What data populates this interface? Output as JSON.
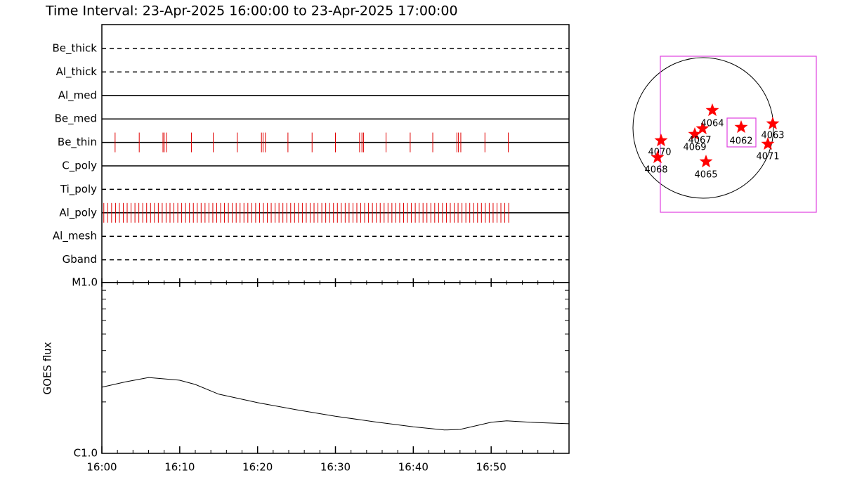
{
  "chart_data": [
    {
      "type": "timeline",
      "title": "Time Interval: 23-Apr-2025 16:00:00 to 23-Apr-2025 17:00:00",
      "categories": [
        "Be_thick",
        "Al_thick",
        "Al_med",
        "Be_med",
        "Be_thin",
        "C_poly",
        "Ti_poly",
        "Al_poly",
        "Al_mesh",
        "Gband"
      ],
      "styles": [
        "dashed",
        "dashed",
        "solid",
        "solid",
        "solid",
        "solid",
        "dashed",
        "solid",
        "dashed",
        "dashed"
      ],
      "color": "#e00000",
      "xlim": [
        0,
        60
      ],
      "events": [
        [],
        [],
        [],
        [],
        [
          1.7,
          4.8,
          7.85,
          8.0,
          8.3,
          11.5,
          14.3,
          17.4,
          20.5,
          20.7,
          21.0,
          23.9,
          27.0,
          30.0,
          33.1,
          33.4,
          33.6,
          36.5,
          39.6,
          42.5,
          45.6,
          45.8,
          46.1,
          49.2,
          52.2
        ],
        [],
        [],
        [
          0.25,
          0.75,
          1.25,
          1.75,
          2.25,
          2.75,
          3.25,
          3.75,
          4.25,
          4.75,
          5.25,
          5.75,
          6.25,
          6.75,
          7.25,
          7.75,
          8.25,
          8.75,
          9.25,
          9.75,
          10.25,
          10.75,
          11.25,
          11.75,
          12.25,
          12.75,
          13.25,
          13.75,
          14.25,
          14.75,
          15.25,
          15.75,
          16.25,
          16.75,
          17.25,
          17.75,
          18.25,
          18.75,
          19.25,
          19.75,
          20.25,
          20.75,
          21.25,
          21.75,
          22.25,
          22.75,
          23.25,
          23.75,
          24.25,
          24.75,
          25.25,
          25.75,
          26.25,
          26.75,
          27.25,
          27.75,
          28.25,
          28.75,
          29.25,
          29.75,
          30.25,
          30.75,
          31.25,
          31.75,
          32.25,
          32.75,
          33.25,
          33.75,
          34.25,
          34.75,
          35.25,
          35.75,
          36.25,
          36.75,
          37.25,
          37.75,
          38.25,
          38.75,
          39.25,
          39.75,
          40.25,
          40.75,
          41.25,
          41.75,
          42.25,
          42.75,
          43.25,
          43.75,
          44.25,
          44.75,
          45.25,
          45.75,
          46.25,
          46.75,
          47.25,
          47.75,
          48.25,
          48.75,
          49.25,
          49.75,
          50.25,
          50.75,
          51.25,
          51.75,
          52.25
        ],
        [],
        []
      ]
    },
    {
      "type": "line",
      "ylabel": "GOES flux",
      "color": "#000000",
      "ylog": true,
      "xlim": [
        0,
        60
      ],
      "xticks": [
        {
          "value": 0,
          "label": "16:00"
        },
        {
          "value": 10,
          "label": "16:10"
        },
        {
          "value": 20,
          "label": "16:20"
        },
        {
          "value": 30,
          "label": "16:30"
        },
        {
          "value": 40,
          "label": "16:40"
        },
        {
          "value": 50,
          "label": "16:50"
        }
      ],
      "xminorticks": [
        2,
        4,
        6,
        8,
        12,
        14,
        16,
        18,
        22,
        24,
        26,
        28,
        32,
        34,
        36,
        38,
        42,
        44,
        46,
        48,
        52,
        54,
        56,
        58
      ],
      "ylim": [
        1e-06,
        1e-05
      ],
      "yticks": [
        {
          "value": 1e-06,
          "label": "C1.0"
        },
        {
          "value": 1e-05,
          "label": "M1.0"
        }
      ],
      "yminorticks": [
        2e-06,
        3e-06,
        4e-06,
        5e-06,
        6e-06,
        7e-06,
        8e-06,
        9e-06
      ],
      "x": [
        0,
        3,
        6,
        10,
        12,
        15,
        20,
        25,
        30,
        35,
        40,
        44,
        46,
        50,
        52,
        55,
        60
      ],
      "y": [
        2.44e-06,
        2.62e-06,
        2.78e-06,
        2.68e-06,
        2.53e-06,
        2.22e-06,
        1.98e-06,
        1.8e-06,
        1.65e-06,
        1.53e-06,
        1.43e-06,
        1.37e-06,
        1.38e-06,
        1.52e-06,
        1.55e-06,
        1.52e-06,
        1.49e-06
      ]
    },
    {
      "type": "scatter",
      "color": "#ff0000",
      "box_color": "#e040e0",
      "xlim": [
        -1.2,
        1.7
      ],
      "ylim": [
        -1.3,
        1.1
      ],
      "labels": [
        "4070",
        "4068",
        "4069",
        "4067",
        "4064",
        "4065",
        "4062",
        "4063",
        "4071"
      ],
      "x": [
        -0.6,
        -0.65,
        -0.12,
        -0.01,
        0.13,
        0.04,
        0.54,
        0.99,
        0.92
      ],
      "y": [
        -0.18,
        -0.42,
        -0.09,
        -0.01,
        0.25,
        -0.48,
        0.01,
        0.06,
        -0.23
      ],
      "boxes": [
        {
          "x": [
            -0.61,
            1.61
          ],
          "y": [
            -1.2,
            1.02
          ]
        },
        {
          "x": [
            0.34,
            0.75
          ],
          "y": [
            -0.27,
            0.14
          ]
        }
      ]
    }
  ]
}
